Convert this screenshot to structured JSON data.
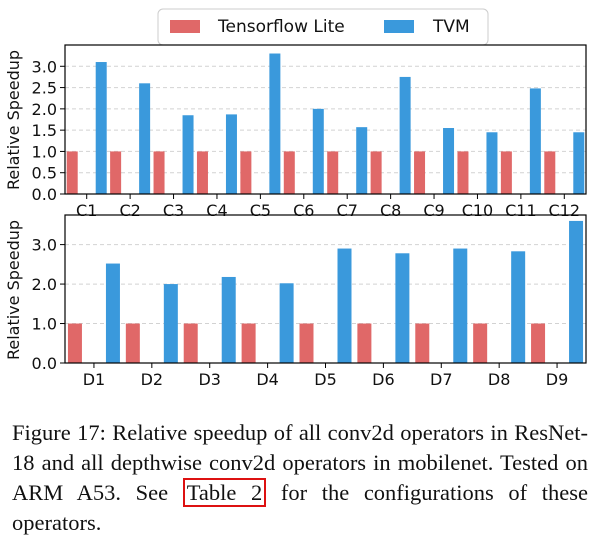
{
  "legend": {
    "items": [
      {
        "label": "Tensorflow Lite",
        "color": "#e06868"
      },
      {
        "label": "TVM",
        "color": "#3a99dc"
      }
    ]
  },
  "chart_data": [
    {
      "type": "bar",
      "categories": [
        "C1",
        "C2",
        "C3",
        "C4",
        "C5",
        "C6",
        "C7",
        "C8",
        "C9",
        "C10",
        "C11",
        "C12"
      ],
      "series": [
        {
          "name": "Tensorflow Lite",
          "values": [
            1,
            1,
            1,
            1,
            1,
            1,
            1,
            1,
            1,
            1,
            1,
            1
          ]
        },
        {
          "name": "TVM",
          "values": [
            3.1,
            2.6,
            1.85,
            1.87,
            3.3,
            2.0,
            1.57,
            2.75,
            1.55,
            1.45,
            2.48,
            1.45
          ]
        }
      ],
      "ylabel": "Relative Speedup",
      "ylim": [
        0,
        3.5
      ],
      "yticks": [
        "0.0",
        "0.5",
        "1.0",
        "1.5",
        "2.0",
        "2.5",
        "3.0"
      ],
      "grid": true
    },
    {
      "type": "bar",
      "categories": [
        "D1",
        "D2",
        "D3",
        "D4",
        "D5",
        "D6",
        "D7",
        "D8",
        "D9"
      ],
      "series": [
        {
          "name": "Tensorflow Lite",
          "values": [
            1,
            1,
            1,
            1,
            1,
            1,
            1,
            1,
            1
          ]
        },
        {
          "name": "TVM",
          "values": [
            2.52,
            2.0,
            2.18,
            2.02,
            2.9,
            2.78,
            2.9,
            2.83,
            3.6
          ]
        }
      ],
      "ylabel": "Relative Speedup",
      "ylim": [
        0,
        3.75
      ],
      "yticks": [
        "0.0",
        "1.0",
        "2.0",
        "3.0"
      ],
      "grid": true
    }
  ],
  "caption": {
    "before": "Figure 17: Relative speedup of all conv2d operators in ResNet-18 and all depthwise conv2d operators in mobilenet. Tested on ARM A53. See ",
    "link": "Table 2",
    "after": " for the configurations of these operators."
  }
}
